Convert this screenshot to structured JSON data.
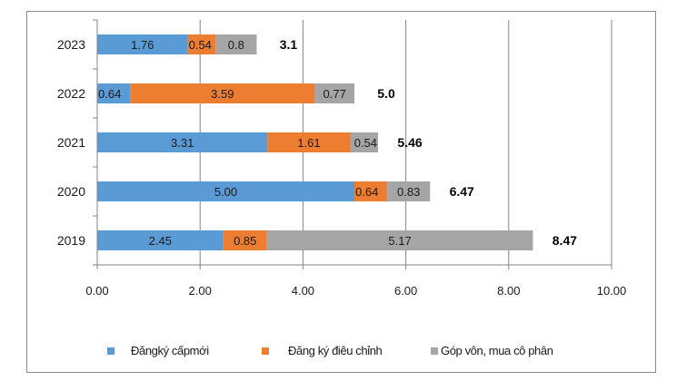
{
  "chart_data": {
    "type": "bar",
    "orientation": "horizontal",
    "stacked": true,
    "title": "",
    "xlabel": "",
    "ylabel": "",
    "categories": [
      "2023",
      "2022",
      "2021",
      "2020",
      "2019"
    ],
    "series": [
      {
        "name": "Đăng ký cấp mới",
        "color": "#5b9bd5",
        "values": [
          1.76,
          0.64,
          3.31,
          5.0,
          2.45
        ],
        "labels": [
          "1.76",
          "0.64",
          "3.31",
          "5.00",
          "2.45"
        ]
      },
      {
        "name": "Đăng ký điều chỉnh",
        "color": "#ed7d31",
        "values": [
          0.54,
          3.59,
          1.61,
          0.64,
          0.85
        ],
        "labels": [
          "0.54",
          "3.59",
          "1.61",
          "0.64",
          "0.85"
        ]
      },
      {
        "name": "Góp vốn, mua cổ phần",
        "color": "#a5a5a5",
        "values": [
          0.8,
          0.77,
          0.54,
          0.83,
          5.17
        ],
        "labels": [
          "0.8",
          "0.77",
          "0.54",
          "0.83",
          "5.17"
        ]
      }
    ],
    "totals": [
      3.1,
      5.0,
      5.46,
      6.47,
      8.47
    ],
    "total_labels": [
      "3.1",
      "5.0",
      "5.46",
      "6.47",
      "8.47"
    ],
    "xlim": [
      0,
      10
    ],
    "xticks": [
      0,
      2,
      4,
      6,
      8,
      10
    ],
    "xtick_labels": [
      "0.00",
      "2.00",
      "4.00",
      "6.00",
      "8.00",
      "10.00"
    ],
    "grid": "vertical",
    "legend_position": "bottom"
  },
  "legend": {
    "items": [
      {
        "label": "Đăngký cấpmới",
        "color": "#5b9bd5"
      },
      {
        "label": "Đăng ký điêu chỉnh",
        "color": "#ed7d31"
      },
      {
        "label": "Góp vôn, mua cô phân",
        "color": "#a5a5a5"
      }
    ]
  }
}
